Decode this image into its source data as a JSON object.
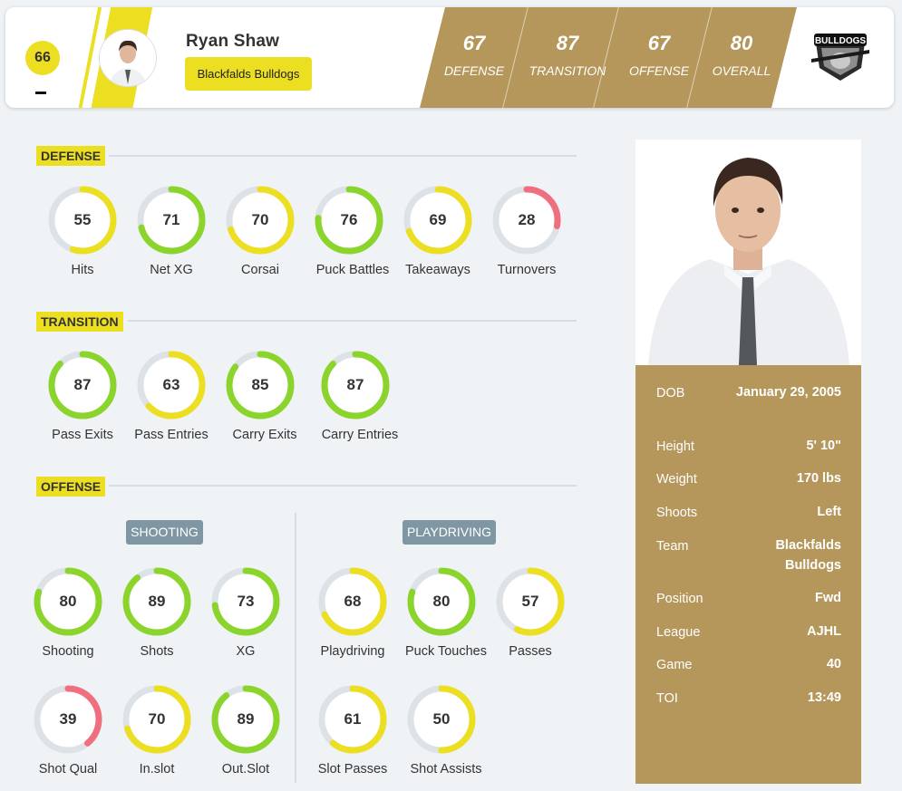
{
  "header": {
    "jersey_number": "66",
    "player_name": "Ryan Shaw",
    "team_name": "Blackfalds Bulldogs",
    "logo_text": "BULLDOGS",
    "ratings": [
      {
        "label": "DEFENSE",
        "value": "67"
      },
      {
        "label": "TRANSITION",
        "value": "87"
      },
      {
        "label": "OFFENSE",
        "value": "67"
      },
      {
        "label": "OVERALL",
        "value": "80"
      }
    ]
  },
  "colors": {
    "green": "#8ad42c",
    "yellow": "#ecdf22",
    "red": "#ef6f7e",
    "track": "#dde2e6",
    "gold": "#b5975b"
  },
  "sections": {
    "defense": {
      "title": "DEFENSE",
      "stats": [
        {
          "label": "Hits",
          "value": 55
        },
        {
          "label": "Net XG",
          "value": 71
        },
        {
          "label": "Corsai",
          "value": 70
        },
        {
          "label": "Puck Battles",
          "value": 76
        },
        {
          "label": "Takeaways",
          "value": 69
        },
        {
          "label": "Turnovers",
          "value": 28
        }
      ]
    },
    "transition": {
      "title": "TRANSITION",
      "stats": [
        {
          "label": "Pass Exits",
          "value": 87
        },
        {
          "label": "Pass Entries",
          "value": 63
        },
        {
          "label": "Carry Exits",
          "value": 85
        },
        {
          "label": "Carry Entries",
          "value": 87
        }
      ]
    },
    "offense": {
      "title": "OFFENSE",
      "shooting": {
        "title": "SHOOTING",
        "stats": [
          {
            "label": "Shooting",
            "value": 80
          },
          {
            "label": "Shots",
            "value": 89
          },
          {
            "label": "XG",
            "value": 73
          },
          {
            "label": "Shot Qual",
            "value": 39
          },
          {
            "label": "In.slot",
            "value": 70
          },
          {
            "label": "Out.Slot",
            "value": 89
          }
        ]
      },
      "playdriving": {
        "title": "PLAYDRIVING",
        "stats": [
          {
            "label": "Playdriving",
            "value": 68
          },
          {
            "label": "Puck Touches",
            "value": 80
          },
          {
            "label": "Passes",
            "value": 57
          },
          {
            "label": "Slot Passes",
            "value": 61
          },
          {
            "label": "Shot Assists",
            "value": 50
          }
        ]
      }
    }
  },
  "info": [
    {
      "key": "DOB",
      "value": "January 29, 2005"
    },
    {
      "key": "Height",
      "value": "5' 10\""
    },
    {
      "key": "Weight",
      "value": "170 lbs"
    },
    {
      "key": "Shoots",
      "value": "Left"
    },
    {
      "key": "Team",
      "value": "Blackfalds Bulldogs"
    },
    {
      "key": "Position",
      "value": "Fwd"
    },
    {
      "key": "League",
      "value": "AJHL"
    },
    {
      "key": "Game",
      "value": "40"
    },
    {
      "key": "TOI",
      "value": "13:49"
    }
  ]
}
